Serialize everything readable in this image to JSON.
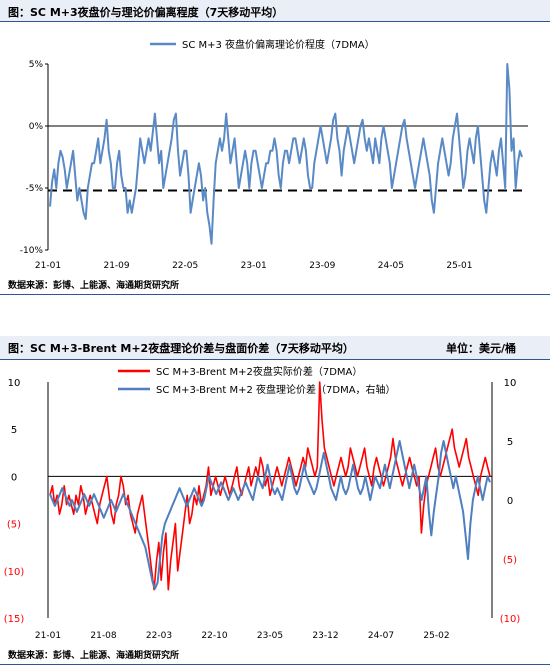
{
  "chart1": {
    "header": "图：SC M+3夜盘价与理论价偏离程度（7天移动平均）",
    "source": "数据来源：彭博、上能源、海通期货研究所",
    "chart_data": {
      "type": "line",
      "legend_position": "top-center",
      "series": [
        {
          "name": "SC M+3 夜盘价偏离理论价程度（7DMA）",
          "color": "#5a8ac6",
          "x_range": [
            "2021-01",
            "2025-10"
          ],
          "values": [
            -6.5,
            -4.5,
            -3.5,
            -5,
            -3,
            -2,
            -2.5,
            -3.5,
            -5,
            -4,
            -3,
            -2,
            -4,
            -6,
            -5,
            -6,
            -7,
            -7.5,
            -5,
            -4,
            -3,
            -3,
            -2,
            -1,
            -3,
            -2,
            -1,
            0.5,
            -2,
            -3,
            -5,
            -5,
            -3,
            -2,
            -4,
            -5,
            -5,
            -7,
            -6,
            -7,
            -6,
            -5,
            -3,
            -1,
            -2,
            -3,
            -2,
            -1,
            -2,
            -0.5,
            1,
            -1,
            -3,
            -2,
            -5,
            -4,
            -3,
            -2,
            -1,
            0.5,
            1,
            -2,
            -4,
            -3,
            -2,
            -2,
            -4,
            -7,
            -6,
            -5,
            -4,
            -3,
            -4,
            -6,
            -5,
            -7,
            -8,
            -9.5,
            -6,
            -3,
            -2,
            -1,
            -2,
            -1,
            1,
            -1,
            -3,
            -2,
            -1,
            -3,
            -5,
            -4,
            -3,
            -2,
            -3,
            -5,
            -3,
            -2,
            -2,
            -3,
            -4,
            -5,
            -4,
            -3,
            -3,
            -2,
            -2,
            -1,
            -2,
            -4,
            -5,
            -3,
            -2,
            -2,
            -3,
            -2,
            -1,
            -1,
            -2,
            -3,
            -2,
            -1,
            -2,
            -4,
            -5,
            -5,
            -3,
            -2,
            -1,
            0,
            -1,
            -2,
            -3,
            -2,
            -1,
            0.5,
            1,
            -1,
            -2,
            -4,
            -2,
            -1,
            0,
            -1,
            -2,
            -3,
            -2,
            -1,
            0,
            0.5,
            -1,
            -2,
            -1,
            -2,
            -3,
            -1,
            -2,
            -3,
            -1,
            0,
            -1,
            -2,
            -3,
            -5,
            -4,
            -3,
            -2,
            -1,
            0,
            0.5,
            -1,
            -2,
            -3,
            -4,
            -5,
            -4,
            -3,
            -2,
            -1,
            -2,
            -3,
            -4,
            -6,
            -7,
            -5,
            -3,
            -2,
            -1,
            -2,
            -3,
            -4,
            -3,
            -1,
            0,
            1,
            -1,
            -3,
            -5,
            -4,
            -2,
            -1,
            -2,
            -3,
            -1,
            0,
            -2,
            -4,
            -6,
            -7,
            -5,
            -3,
            -2,
            -3,
            -4,
            -2,
            -1,
            -3,
            -5,
            5,
            3,
            -2,
            -1,
            -5,
            -3,
            -2,
            -2.5
          ]
        }
      ],
      "reference_lines": [
        {
          "y": -5.2,
          "style": "dashed"
        }
      ],
      "ylim": [
        -10,
        5
      ],
      "y_ticks": [
        {
          "v": 5,
          "label": "5%"
        },
        {
          "v": 0,
          "label": "0%"
        },
        {
          "v": -5,
          "label": "-5%"
        },
        {
          "v": -10,
          "label": "-10%"
        }
      ],
      "x_ticks": [
        "21-01",
        "21-09",
        "22-05",
        "23-01",
        "23-09",
        "24-05",
        "25-01"
      ]
    }
  },
  "chart2": {
    "header": "图：SC M+3-Brent M+2夜盘理论价差与盘面价差（7天移动平均）",
    "unit": "单位：美元/桶",
    "source": "数据来源：彭博、上能源、海通期货研究所",
    "chart_data": {
      "type": "line",
      "legend_position": "top-center",
      "series": [
        {
          "name": "SC M+3-Brent M+2夜盘实际价差（7DMA）",
          "color": "#ff0000",
          "axis": "left",
          "x_range": [
            "2021-01",
            "2025-10"
          ],
          "values": [
            -2,
            -1,
            -3,
            -2,
            -4,
            -3,
            -1,
            -3,
            -2,
            -3,
            -4,
            -2,
            -3,
            -1,
            -2,
            -4,
            -3,
            -2,
            -3,
            -4,
            -5,
            -3,
            -2,
            -1,
            0,
            -2,
            -4,
            -5,
            -3,
            -2,
            0,
            -1,
            -3,
            -2,
            -4,
            -5,
            -6,
            -4,
            -3,
            -2,
            -4,
            -6,
            -8,
            -10,
            -12,
            -9,
            -7,
            -11,
            -8,
            -6,
            -12,
            -9,
            -7,
            -5,
            -10,
            -8,
            -6,
            -4,
            -2,
            -5,
            -4,
            -2,
            -3,
            -1,
            -3,
            -2,
            -1,
            1,
            -2,
            -1,
            0,
            -1,
            -2,
            -1,
            0,
            -1,
            -2,
            -1,
            0,
            1,
            -1,
            -2,
            -1,
            0,
            1,
            -1,
            0,
            1,
            0,
            2,
            1,
            -1,
            0,
            -2,
            -1,
            0,
            1,
            0,
            -1,
            0,
            1,
            2,
            1,
            0,
            -1,
            0,
            1,
            2,
            1,
            3,
            2,
            1,
            0,
            1,
            10,
            6,
            3,
            2,
            1,
            0,
            -1,
            0,
            1,
            2,
            1,
            0,
            1,
            3,
            2,
            1,
            0,
            1,
            2,
            3,
            1,
            0,
            -1,
            1,
            2,
            1,
            0,
            -1,
            0,
            1,
            2,
            4,
            2,
            1,
            0,
            -1,
            0,
            1,
            2,
            1,
            0,
            -1,
            0,
            -6,
            -3,
            -1,
            0,
            1,
            2,
            3,
            1,
            0,
            1,
            2,
            3,
            4,
            5,
            3,
            2,
            1,
            2,
            3,
            4,
            2,
            1,
            0,
            -1,
            -2,
            0,
            1,
            2,
            1,
            0
          ]
        },
        {
          "name": "SC M+3-Brent M+2 夜盘理论价差（7DMA，右轴）",
          "color": "#4f7fbf",
          "axis": "right",
          "x_range": [
            "2021-01",
            "2025-10"
          ],
          "values": [
            0.5,
            0,
            -0.5,
            0,
            0.5,
            1,
            0.5,
            0,
            -0.5,
            0,
            -0.5,
            -1,
            -0.5,
            0,
            0.5,
            0,
            -0.5,
            0,
            0.5,
            0,
            -0.5,
            -1,
            -1.5,
            -1,
            -0.5,
            0,
            -0.5,
            -1,
            -0.5,
            0,
            0.5,
            0,
            -0.5,
            -1,
            -1.5,
            -2,
            -2.5,
            -3,
            -3.5,
            -4,
            -5,
            -6,
            -7,
            -7.5,
            -7,
            -5,
            -3,
            -2,
            -1.5,
            -1,
            -0.5,
            0,
            0.5,
            1,
            0.5,
            0,
            -0.5,
            0,
            0.5,
            1,
            0.5,
            0,
            -0.5,
            0,
            1,
            2,
            1.5,
            1,
            0.5,
            1,
            1.5,
            1,
            0.5,
            0,
            0.5,
            1,
            0.5,
            0,
            0.5,
            1,
            1.5,
            1,
            0.5,
            0,
            1,
            2,
            1.5,
            1,
            2,
            3,
            2,
            1,
            0.5,
            1,
            0.5,
            0,
            1,
            2,
            3,
            2,
            1,
            0.5,
            1,
            2,
            3,
            2,
            1.5,
            1,
            0.5,
            1,
            2,
            3,
            4,
            3,
            2,
            1,
            0.5,
            0,
            1,
            2,
            1,
            0.5,
            1,
            2,
            3,
            2,
            1,
            0.5,
            1,
            2,
            1,
            0,
            1,
            2,
            1.5,
            1,
            2,
            3,
            2,
            1,
            2,
            3,
            4,
            5,
            4,
            3,
            2,
            1,
            2,
            3,
            2,
            1,
            0,
            1,
            2,
            -1,
            -3,
            -1,
            0.5,
            2,
            4,
            5,
            4,
            3,
            2,
            1,
            2,
            1,
            0,
            -1,
            -3,
            -5,
            -2,
            0,
            1,
            2,
            1,
            0,
            1,
            2,
            1.5
          ]
        }
      ],
      "ylim_left": [
        -15,
        10
      ],
      "ylim_right": [
        -10,
        10
      ],
      "y_ticks_left": [
        {
          "v": 10,
          "label": "10"
        },
        {
          "v": 5,
          "label": "5"
        },
        {
          "v": 0,
          "label": "0"
        },
        {
          "v": -5,
          "label": "(5)"
        },
        {
          "v": -10,
          "label": "(10)"
        },
        {
          "v": -15,
          "label": "(15)"
        }
      ],
      "y_ticks_right": [
        {
          "v": 10,
          "label": "10"
        },
        {
          "v": 5,
          "label": "5"
        },
        {
          "v": 0,
          "label": "0"
        },
        {
          "v": -5,
          "label": "(5)"
        },
        {
          "v": -10,
          "label": "(10)"
        }
      ],
      "negative_tick_color": "#ff0000",
      "x_ticks": [
        "21-01",
        "21-08",
        "22-03",
        "22-10",
        "23-05",
        "23-12",
        "24-07",
        "25-02"
      ]
    }
  }
}
